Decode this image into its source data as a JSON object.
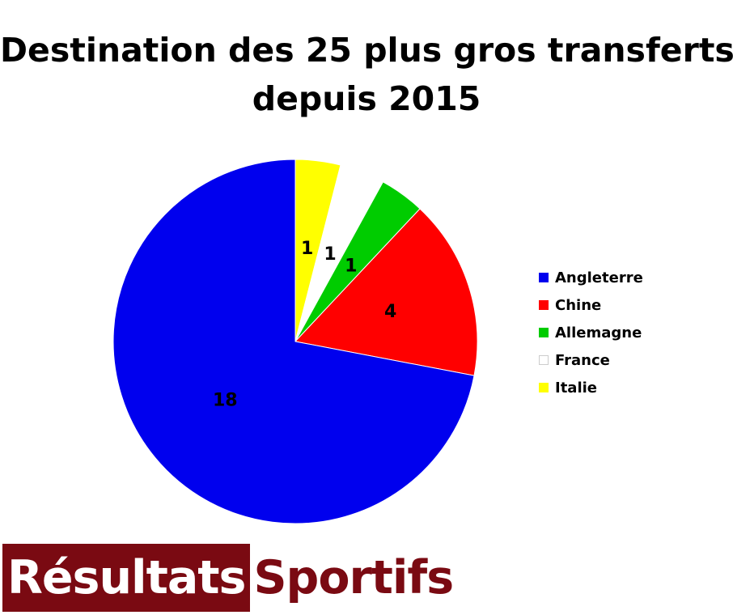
{
  "chart_data": {
    "type": "pie",
    "title_line1": "Destination des 25 plus gros transferts",
    "title_line2": "depuis 2015",
    "slices": [
      {
        "label": "Angleterre",
        "value": 18,
        "value_label": "18",
        "color": "#0000ee"
      },
      {
        "label": "Chine",
        "value": 4,
        "value_label": "4",
        "color": "#ff0000"
      },
      {
        "label": "Allemagne",
        "value": 1,
        "value_label": "1",
        "color": "#00cc00"
      },
      {
        "label": "France",
        "value": 1,
        "value_label": "1",
        "color": "#ffffff"
      },
      {
        "label": "Italie",
        "value": 1,
        "value_label": "1",
        "color": "#ffff00"
      }
    ],
    "legend_position": "right"
  },
  "logo": {
    "part1": "Résultats",
    "part2": "Sportifs",
    "color": "#7a0a12"
  }
}
